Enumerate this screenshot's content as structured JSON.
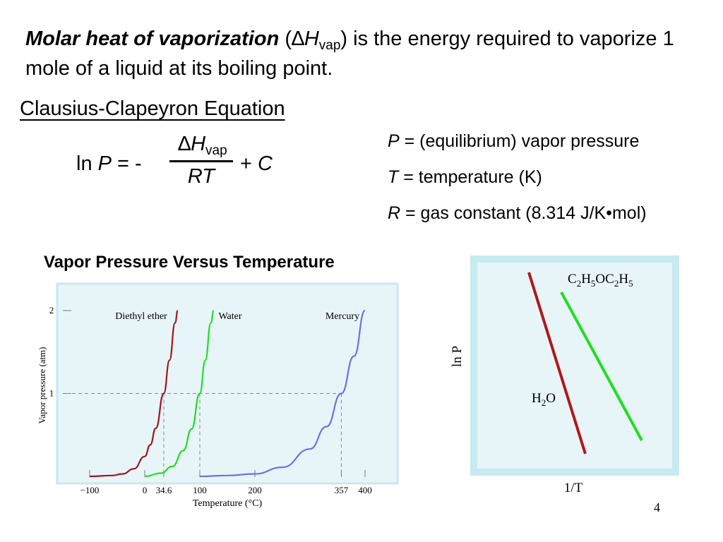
{
  "intro": {
    "term": "Molar heat of vaporization",
    "open": "(",
    "delta": "∆",
    "symbol": "H",
    "sub": "vap",
    "rest": ") is the energy required to vaporize 1 mole of a liquid at its boiling point."
  },
  "equation": {
    "heading": "Clausius-Clapeyron Equation",
    "ln": "ln ",
    "p": "P",
    "eq_minus": " = -",
    "delta": "∆",
    "h": "H",
    "vap": "vap",
    "denominator": "RT",
    "plus": "+ ",
    "c": "C"
  },
  "definitions": [
    {
      "symbol": "P",
      "text": " = (equilibrium) vapor pressure"
    },
    {
      "symbol": "T",
      "text": " = temperature (K)"
    },
    {
      "symbol": "R",
      "text": " = gas constant (8.314 J/K•mol)"
    }
  ],
  "chart_title": "Vapor Pressure Versus Temperature",
  "chart_data": [
    {
      "type": "line",
      "ylabel": "Vapor pressure (atm)",
      "xlabel": "Temperature (°C)",
      "xticks": [
        "−100",
        "0",
        "34.6",
        "100",
        "200",
        "357",
        "400"
      ],
      "yticks": [
        "1",
        "2"
      ],
      "xlim": [
        -100,
        400
      ],
      "ylim": [
        0,
        2
      ],
      "series": [
        {
          "name": "Diethyl ether",
          "color": "#a01818",
          "normal_boiling_point": 34.6,
          "x": [
            -100,
            -60,
            -40,
            -20,
            0,
            10,
            20,
            34.6,
            45,
            55,
            60
          ],
          "y": [
            0.0,
            0.01,
            0.03,
            0.09,
            0.24,
            0.38,
            0.58,
            1.0,
            1.4,
            1.85,
            2.0
          ]
        },
        {
          "name": "Water",
          "color": "#22dd22",
          "normal_boiling_point": 100,
          "x": [
            0,
            30,
            50,
            70,
            85,
            100,
            110,
            120,
            125
          ],
          "y": [
            0.0,
            0.04,
            0.12,
            0.31,
            0.57,
            1.0,
            1.4,
            1.85,
            2.0
          ]
        },
        {
          "name": "Mercury",
          "color": "#6f6fe8",
          "normal_boiling_point": 357,
          "x": [
            100,
            150,
            200,
            250,
            300,
            330,
            357,
            380,
            400
          ],
          "y": [
            0.0,
            0.01,
            0.03,
            0.11,
            0.33,
            0.6,
            1.0,
            1.45,
            2.0
          ]
        }
      ]
    },
    {
      "type": "line",
      "ylabel": "ln P",
      "xlabel": "1/T",
      "series": [
        {
          "name": "C2H5OC2H5",
          "label_parts": [
            "C",
            "2",
            "H",
            "5",
            "OC",
            "2",
            "H",
            "5"
          ],
          "color": "#22dd22"
        },
        {
          "name": "H2O",
          "label_parts": [
            "H",
            "2",
            "O"
          ],
          "color": "#b01818"
        }
      ]
    }
  ],
  "page_number": "4"
}
